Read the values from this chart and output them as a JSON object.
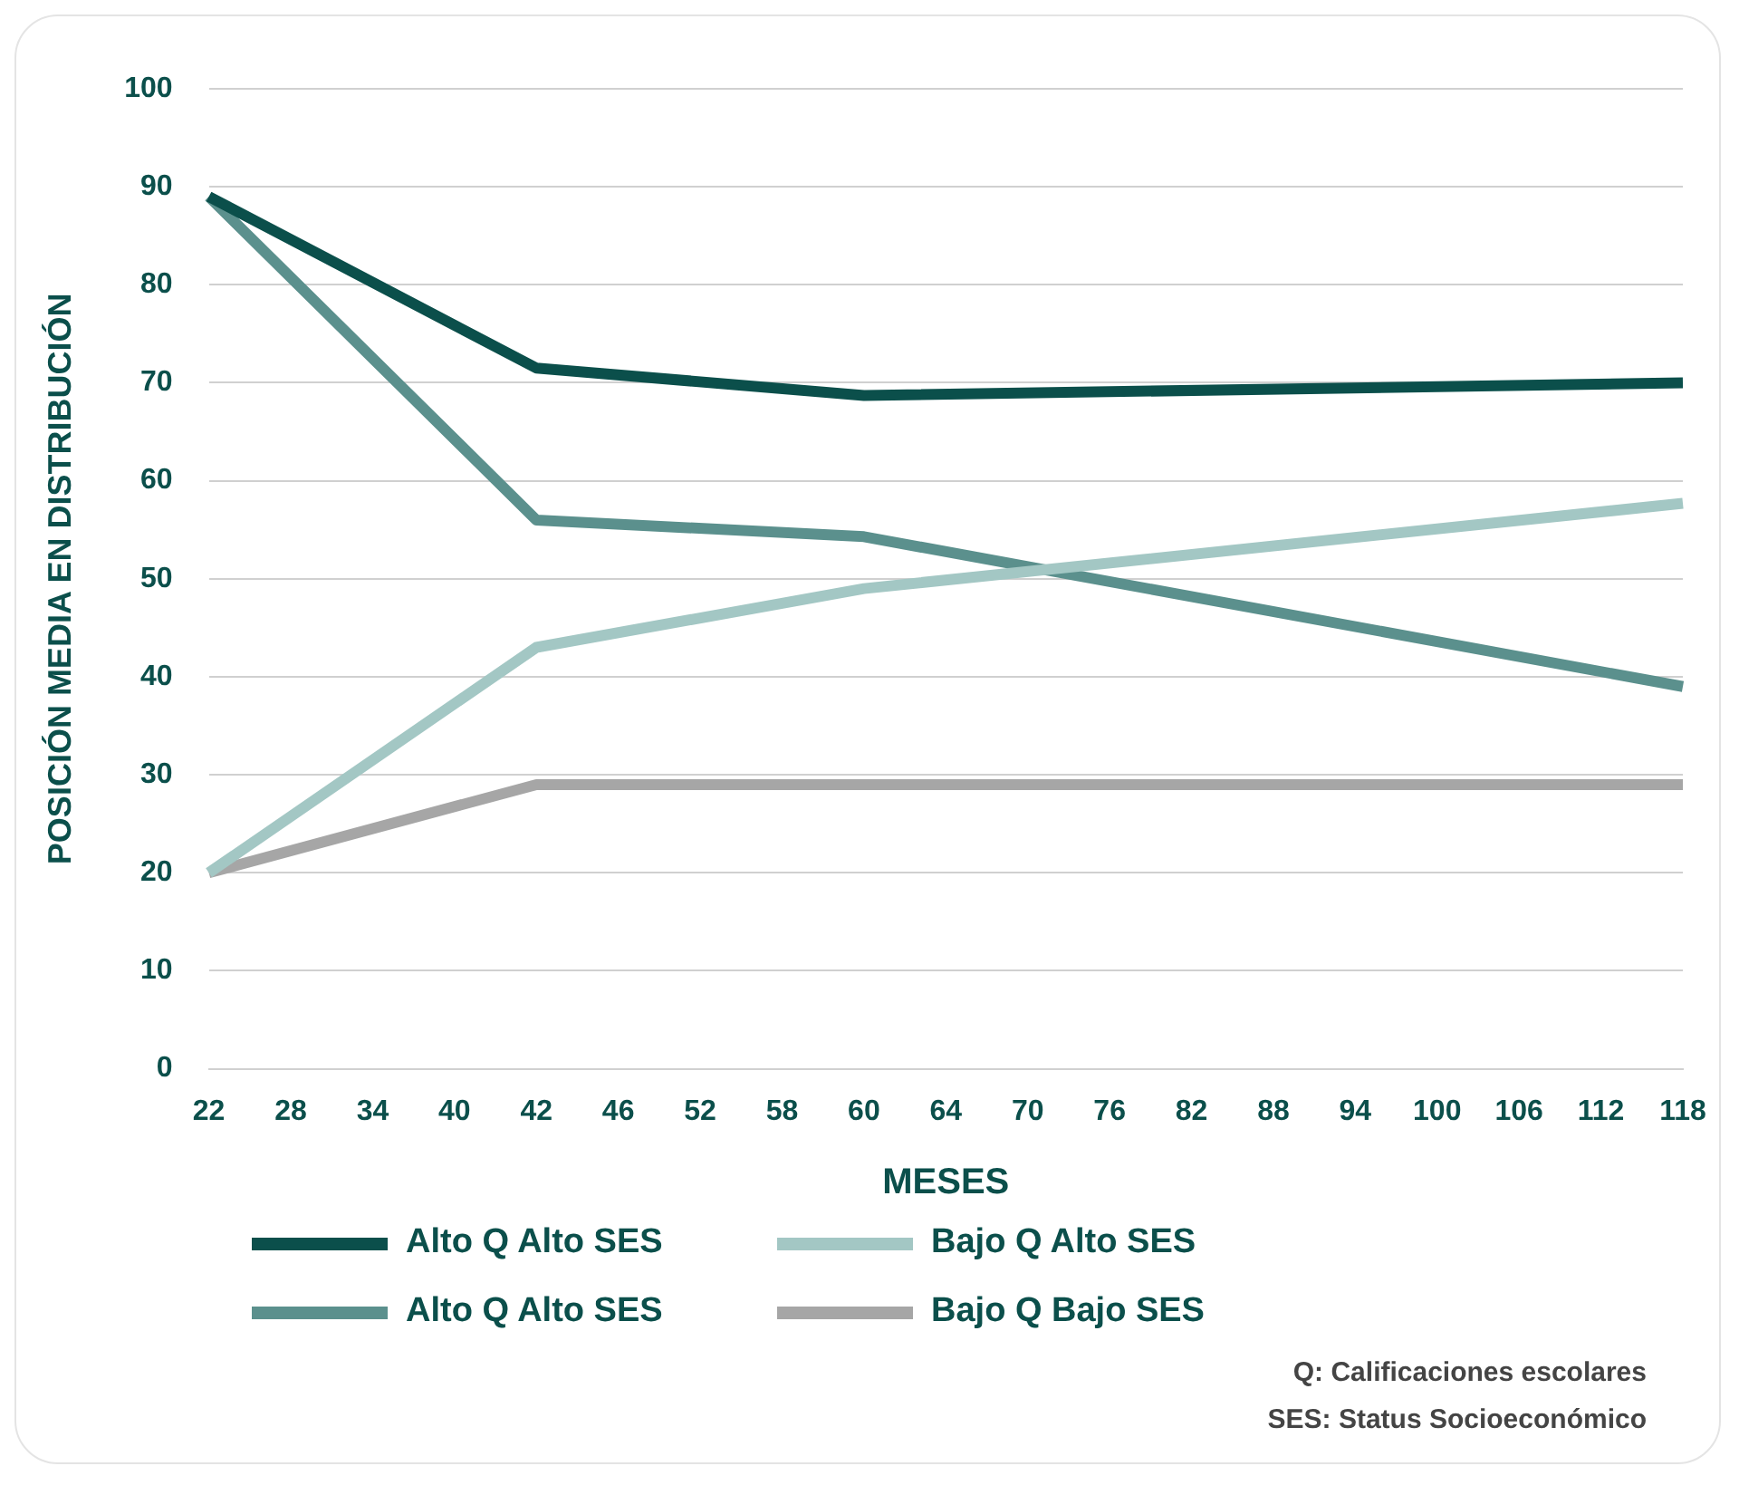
{
  "chart_data": {
    "type": "line",
    "xlabel": "MESES",
    "ylabel": "POSICIÓN MEDIA EN DISTRIBUCIÓN",
    "categories": [
      "22",
      "28",
      "34",
      "40",
      "42",
      "46",
      "52",
      "58",
      "60",
      "64",
      "70",
      "76",
      "82",
      "88",
      "94",
      "100",
      "106",
      "112",
      "118"
    ],
    "series": [
      {
        "name": "Alto Q Alto SES",
        "color": "#0b4f4b",
        "values": [
          89,
          null,
          null,
          null,
          71.5,
          null,
          null,
          null,
          68.7,
          null,
          null,
          null,
          null,
          null,
          null,
          null,
          null,
          null,
          70
        ]
      },
      {
        "name": "Bajo Q Alto SES",
        "color": "#a3c7c4",
        "values": [
          20,
          null,
          null,
          null,
          43,
          null,
          null,
          null,
          49,
          null,
          null,
          null,
          null,
          null,
          null,
          null,
          null,
          null,
          57.7
        ]
      },
      {
        "name": "Alto Q Alto SES",
        "color": "#5b908d",
        "values": [
          89,
          null,
          null,
          null,
          56,
          null,
          null,
          null,
          54.3,
          null,
          null,
          null,
          null,
          null,
          null,
          null,
          null,
          null,
          39
        ]
      },
      {
        "name": "Bajo Q Bajo SES",
        "color": "#a6a6a6",
        "values": [
          20,
          null,
          null,
          null,
          29,
          null,
          null,
          null,
          29,
          null,
          null,
          null,
          null,
          null,
          null,
          null,
          null,
          null,
          29
        ]
      }
    ],
    "ylim": [
      0,
      100
    ],
    "yticks": [
      0,
      10,
      20,
      30,
      40,
      50,
      60,
      70,
      80,
      90,
      100
    ],
    "grid": "y",
    "legend": "bottom",
    "marker": "none",
    "line_style": "solid",
    "annotations": [
      "Q: Calificaciones escolares",
      "SES: Status Socioeconómico"
    ]
  }
}
